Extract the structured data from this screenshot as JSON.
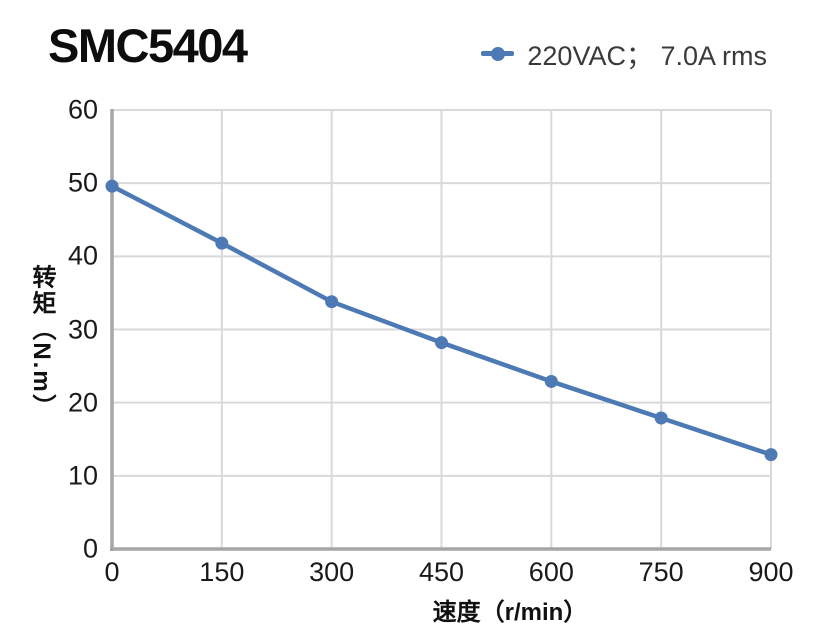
{
  "title": "SMC5404",
  "legend": {
    "label": "220VAC； 7.0A rms",
    "marker": "line-dot-marker",
    "color": "#4d79b4"
  },
  "axes": {
    "xlabel": "速度（r/min）",
    "ylabel": "转矩（N.m）"
  },
  "chart_data": {
    "type": "line",
    "title": "SMC5404",
    "x": [
      0,
      150,
      300,
      450,
      600,
      750,
      900
    ],
    "series": [
      {
        "name": "220VAC； 7.0A rms",
        "values": [
          49.6,
          41.8,
          33.8,
          28.2,
          22.9,
          17.9,
          12.9
        ]
      }
    ],
    "xlabel": "速度（r/min）",
    "ylabel": "转矩（N.m）",
    "xlim": [
      0,
      900
    ],
    "ylim": [
      0,
      60
    ],
    "xticks": [
      0,
      150,
      300,
      450,
      600,
      750,
      900
    ],
    "yticks": [
      0,
      10,
      20,
      30,
      40,
      50,
      60
    ],
    "grid": true,
    "legend_position": "top-right",
    "colors": {
      "line": "#4d79b4",
      "grid": "#d9d9d9",
      "spine": "#a6a6a6",
      "tick_text": "#1a1a1a",
      "legend_text": "#3a3a3a",
      "title_text": "#0d0d0d"
    }
  }
}
